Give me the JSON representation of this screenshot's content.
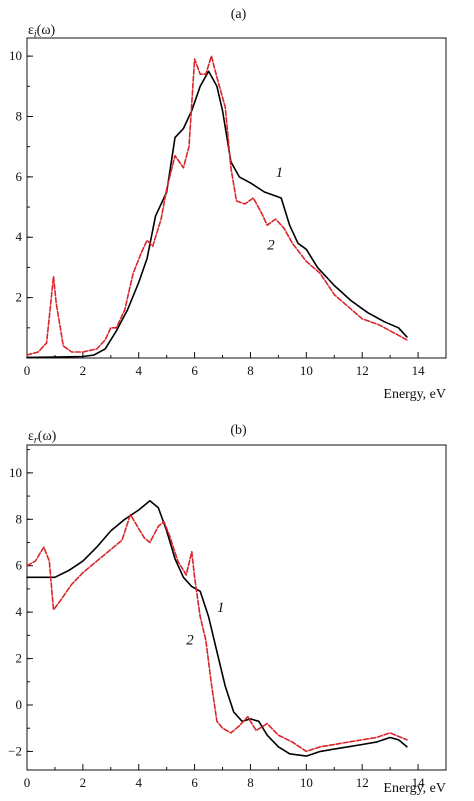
{
  "chart_data": [
    {
      "type": "line",
      "panel_label": "(a)",
      "ylabel_main": "ε",
      "ylabel_sub": "i",
      "ylabel_tail": "(ω)",
      "xlabel": "Energy, eV",
      "xlim": [
        0,
        15
      ],
      "ylim": [
        0,
        10.6
      ],
      "xticks": [
        0,
        2,
        4,
        6,
        8,
        10,
        12,
        14
      ],
      "yticks": [
        2,
        4,
        6,
        8,
        10
      ],
      "grid": false,
      "series": [
        {
          "name": "1",
          "color": "#000000",
          "dash": "solid",
          "label_at": [
            8.9,
            6.0
          ],
          "points": [
            [
              0,
              0.02
            ],
            [
              1.0,
              0.03
            ],
            [
              2.0,
              0.05
            ],
            [
              2.4,
              0.1
            ],
            [
              2.8,
              0.3
            ],
            [
              3.2,
              0.9
            ],
            [
              3.6,
              1.6
            ],
            [
              4.0,
              2.5
            ],
            [
              4.3,
              3.3
            ],
            [
              4.6,
              4.7
            ],
            [
              5.0,
              5.5
            ],
            [
              5.3,
              7.3
            ],
            [
              5.6,
              7.6
            ],
            [
              5.9,
              8.2
            ],
            [
              6.2,
              9.0
            ],
            [
              6.5,
              9.5
            ],
            [
              6.8,
              9.0
            ],
            [
              7.0,
              8.2
            ],
            [
              7.3,
              6.5
            ],
            [
              7.6,
              6.0
            ],
            [
              8.0,
              5.8
            ],
            [
              8.5,
              5.5
            ],
            [
              8.8,
              5.4
            ],
            [
              9.1,
              5.3
            ],
            [
              9.4,
              4.4
            ],
            [
              9.7,
              3.8
            ],
            [
              10.0,
              3.6
            ],
            [
              10.4,
              3.0
            ],
            [
              11.0,
              2.4
            ],
            [
              11.6,
              1.9
            ],
            [
              12.2,
              1.5
            ],
            [
              12.8,
              1.2
            ],
            [
              13.3,
              1.0
            ],
            [
              13.6,
              0.7
            ]
          ]
        },
        {
          "name": "2",
          "color": "#d9252a",
          "dash": "dashed",
          "label_at": [
            8.6,
            3.6
          ],
          "points": [
            [
              0,
              0.1
            ],
            [
              0.4,
              0.2
            ],
            [
              0.7,
              0.5
            ],
            [
              0.85,
              1.8
            ],
            [
              0.95,
              2.7
            ],
            [
              1.05,
              1.8
            ],
            [
              1.3,
              0.4
            ],
            [
              1.6,
              0.2
            ],
            [
              2.0,
              0.2
            ],
            [
              2.5,
              0.3
            ],
            [
              2.8,
              0.6
            ],
            [
              3.0,
              1.0
            ],
            [
              3.2,
              1.0
            ],
            [
              3.5,
              1.6
            ],
            [
              3.8,
              2.8
            ],
            [
              4.1,
              3.5
            ],
            [
              4.3,
              3.9
            ],
            [
              4.5,
              3.7
            ],
            [
              4.8,
              4.6
            ],
            [
              5.0,
              5.6
            ],
            [
              5.3,
              6.7
            ],
            [
              5.6,
              6.3
            ],
            [
              5.8,
              7.0
            ],
            [
              6.0,
              9.9
            ],
            [
              6.2,
              9.4
            ],
            [
              6.4,
              9.4
            ],
            [
              6.6,
              10.0
            ],
            [
              6.8,
              9.3
            ],
            [
              7.1,
              8.3
            ],
            [
              7.3,
              6.3
            ],
            [
              7.5,
              5.2
            ],
            [
              7.8,
              5.1
            ],
            [
              8.1,
              5.3
            ],
            [
              8.4,
              4.8
            ],
            [
              8.6,
              4.4
            ],
            [
              8.9,
              4.6
            ],
            [
              9.2,
              4.3
            ],
            [
              9.5,
              3.8
            ],
            [
              10.0,
              3.2
            ],
            [
              10.5,
              2.8
            ],
            [
              11.0,
              2.1
            ],
            [
              11.5,
              1.7
            ],
            [
              12.0,
              1.3
            ],
            [
              12.6,
              1.1
            ],
            [
              13.2,
              0.8
            ],
            [
              13.6,
              0.6
            ]
          ]
        }
      ]
    },
    {
      "type": "line",
      "panel_label": "(b)",
      "ylabel_main": "ε",
      "ylabel_sub": "r",
      "ylabel_tail": "(ω)",
      "xlabel": "Energy, eV",
      "xlim": [
        0,
        15
      ],
      "ylim": [
        -2.8,
        11.2
      ],
      "xticks": [
        0,
        2,
        4,
        6,
        8,
        10,
        12,
        14
      ],
      "yticks": [
        -2,
        0,
        2,
        4,
        6,
        8,
        10
      ],
      "grid": false,
      "series": [
        {
          "name": "1",
          "color": "#000000",
          "dash": "solid",
          "label_at": [
            6.8,
            4.0
          ],
          "points": [
            [
              0,
              5.5
            ],
            [
              1.0,
              5.5
            ],
            [
              1.5,
              5.8
            ],
            [
              2.0,
              6.2
            ],
            [
              2.5,
              6.8
            ],
            [
              3.0,
              7.5
            ],
            [
              3.5,
              8.0
            ],
            [
              4.0,
              8.4
            ],
            [
              4.4,
              8.8
            ],
            [
              4.7,
              8.5
            ],
            [
              5.0,
              7.5
            ],
            [
              5.3,
              6.3
            ],
            [
              5.6,
              5.5
            ],
            [
              5.9,
              5.1
            ],
            [
              6.2,
              4.9
            ],
            [
              6.5,
              3.8
            ],
            [
              6.8,
              2.3
            ],
            [
              7.1,
              0.8
            ],
            [
              7.4,
              -0.3
            ],
            [
              7.7,
              -0.7
            ],
            [
              8.0,
              -0.6
            ],
            [
              8.3,
              -0.7
            ],
            [
              8.6,
              -1.3
            ],
            [
              9.0,
              -1.8
            ],
            [
              9.4,
              -2.1
            ],
            [
              10.0,
              -2.2
            ],
            [
              10.5,
              -2.0
            ],
            [
              11.0,
              -1.9
            ],
            [
              11.5,
              -1.8
            ],
            [
              12.0,
              -1.7
            ],
            [
              12.5,
              -1.6
            ],
            [
              13.0,
              -1.4
            ],
            [
              13.3,
              -1.5
            ],
            [
              13.6,
              -1.8
            ]
          ]
        },
        {
          "name": "2",
          "color": "#d9252a",
          "dash": "dashed",
          "label_at": [
            5.7,
            2.6
          ],
          "points": [
            [
              0,
              6.0
            ],
            [
              0.3,
              6.2
            ],
            [
              0.6,
              6.8
            ],
            [
              0.8,
              6.2
            ],
            [
              0.95,
              4.1
            ],
            [
              1.2,
              4.5
            ],
            [
              1.6,
              5.2
            ],
            [
              2.0,
              5.7
            ],
            [
              2.5,
              6.2
            ],
            [
              3.0,
              6.7
            ],
            [
              3.4,
              7.1
            ],
            [
              3.7,
              8.2
            ],
            [
              3.9,
              7.8
            ],
            [
              4.2,
              7.2
            ],
            [
              4.4,
              7.0
            ],
            [
              4.7,
              7.7
            ],
            [
              4.9,
              7.9
            ],
            [
              5.1,
              7.3
            ],
            [
              5.4,
              6.2
            ],
            [
              5.7,
              5.6
            ],
            [
              5.9,
              6.6
            ],
            [
              6.0,
              5.5
            ],
            [
              6.2,
              3.8
            ],
            [
              6.4,
              2.8
            ],
            [
              6.6,
              0.9
            ],
            [
              6.8,
              -0.7
            ],
            [
              7.0,
              -1.0
            ],
            [
              7.3,
              -1.2
            ],
            [
              7.6,
              -0.9
            ],
            [
              7.9,
              -0.5
            ],
            [
              8.2,
              -1.1
            ],
            [
              8.6,
              -0.8
            ],
            [
              9.0,
              -1.3
            ],
            [
              9.5,
              -1.6
            ],
            [
              10.0,
              -2.0
            ],
            [
              10.5,
              -1.8
            ],
            [
              11.0,
              -1.7
            ],
            [
              11.5,
              -1.6
            ],
            [
              12.0,
              -1.5
            ],
            [
              12.5,
              -1.4
            ],
            [
              13.0,
              -1.2
            ],
            [
              13.6,
              -1.5
            ]
          ]
        }
      ]
    }
  ]
}
